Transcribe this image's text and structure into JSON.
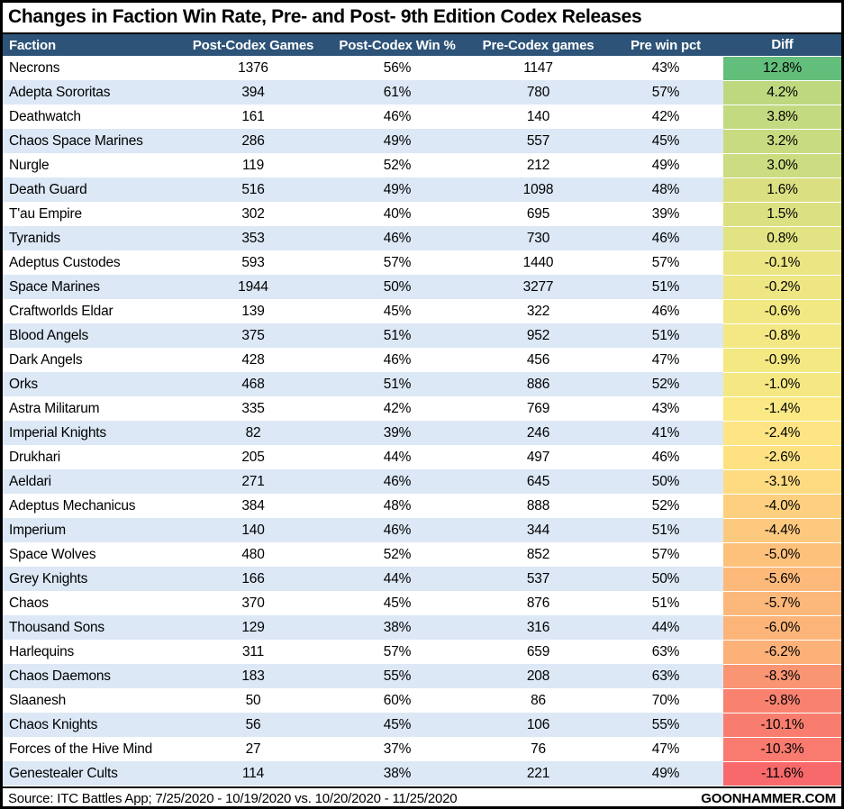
{
  "title": "Changes in Faction Win Rate, Pre- and Post- 9th Edition Codex Releases",
  "footer": {
    "source": "Source: ITC Battles App; 7/25/2020 - 10/19/2020 vs. 10/20/2020 - 11/25/2020",
    "site": "GOONHAMMER.COM"
  },
  "colors": {
    "header_bg": "#2D5378",
    "header_text": "#FFFFFF",
    "row_bg": "#FFFFFF",
    "row_alt_bg": "#DCE8F6",
    "diff_scale": {
      "min_value": -11.6,
      "min_color": "#F8696B",
      "mid_value": -1.9,
      "mid_color": "#FFEB84",
      "max_value": 12.8,
      "max_color": "#63BE7B"
    }
  },
  "chart_data": {
    "type": "table",
    "columns": [
      "Faction",
      "Post-Codex Games",
      "Post-Codex Win %",
      "Pre-Codex games",
      "Pre win pct",
      "Diff"
    ],
    "rows": [
      {
        "faction": "Necrons",
        "post_games": "1376",
        "post_win": "56%",
        "pre_games": "1147",
        "pre_win": "43%",
        "diff": "12.8%",
        "diff_value": 12.8
      },
      {
        "faction": "Adepta Sororitas",
        "post_games": "394",
        "post_win": "61%",
        "pre_games": "780",
        "pre_win": "57%",
        "diff": "4.2%",
        "diff_value": 4.2
      },
      {
        "faction": "Deathwatch",
        "post_games": "161",
        "post_win": "46%",
        "pre_games": "140",
        "pre_win": "42%",
        "diff": "3.8%",
        "diff_value": 3.8
      },
      {
        "faction": "Chaos Space Marines",
        "post_games": "286",
        "post_win": "49%",
        "pre_games": "557",
        "pre_win": "45%",
        "diff": "3.2%",
        "diff_value": 3.2
      },
      {
        "faction": "Nurgle",
        "post_games": "119",
        "post_win": "52%",
        "pre_games": "212",
        "pre_win": "49%",
        "diff": "3.0%",
        "diff_value": 3.0
      },
      {
        "faction": "Death Guard",
        "post_games": "516",
        "post_win": "49%",
        "pre_games": "1098",
        "pre_win": "48%",
        "diff": "1.6%",
        "diff_value": 1.6
      },
      {
        "faction": "T'au Empire",
        "post_games": "302",
        "post_win": "40%",
        "pre_games": "695",
        "pre_win": "39%",
        "diff": "1.5%",
        "diff_value": 1.5
      },
      {
        "faction": "Tyranids",
        "post_games": "353",
        "post_win": "46%",
        "pre_games": "730",
        "pre_win": "46%",
        "diff": "0.8%",
        "diff_value": 0.8
      },
      {
        "faction": "Adeptus Custodes",
        "post_games": "593",
        "post_win": "57%",
        "pre_games": "1440",
        "pre_win": "57%",
        "diff": "-0.1%",
        "diff_value": -0.1
      },
      {
        "faction": "Space Marines",
        "post_games": "1944",
        "post_win": "50%",
        "pre_games": "3277",
        "pre_win": "51%",
        "diff": "-0.2%",
        "diff_value": -0.2
      },
      {
        "faction": "Craftworlds Eldar",
        "post_games": "139",
        "post_win": "45%",
        "pre_games": "322",
        "pre_win": "46%",
        "diff": "-0.6%",
        "diff_value": -0.6
      },
      {
        "faction": "Blood Angels",
        "post_games": "375",
        "post_win": "51%",
        "pre_games": "952",
        "pre_win": "51%",
        "diff": "-0.8%",
        "diff_value": -0.8
      },
      {
        "faction": "Dark Angels",
        "post_games": "428",
        "post_win": "46%",
        "pre_games": "456",
        "pre_win": "47%",
        "diff": "-0.9%",
        "diff_value": -0.9
      },
      {
        "faction": "Orks",
        "post_games": "468",
        "post_win": "51%",
        "pre_games": "886",
        "pre_win": "52%",
        "diff": "-1.0%",
        "diff_value": -1.0
      },
      {
        "faction": "Astra Militarum",
        "post_games": "335",
        "post_win": "42%",
        "pre_games": "769",
        "pre_win": "43%",
        "diff": "-1.4%",
        "diff_value": -1.4
      },
      {
        "faction": "Imperial Knights",
        "post_games": "82",
        "post_win": "39%",
        "pre_games": "246",
        "pre_win": "41%",
        "diff": "-2.4%",
        "diff_value": -2.4
      },
      {
        "faction": "Drukhari",
        "post_games": "205",
        "post_win": "44%",
        "pre_games": "497",
        "pre_win": "46%",
        "diff": "-2.6%",
        "diff_value": -2.6
      },
      {
        "faction": "Aeldari",
        "post_games": "271",
        "post_win": "46%",
        "pre_games": "645",
        "pre_win": "50%",
        "diff": "-3.1%",
        "diff_value": -3.1
      },
      {
        "faction": "Adeptus Mechanicus",
        "post_games": "384",
        "post_win": "48%",
        "pre_games": "888",
        "pre_win": "52%",
        "diff": "-4.0%",
        "diff_value": -4.0
      },
      {
        "faction": "Imperium",
        "post_games": "140",
        "post_win": "46%",
        "pre_games": "344",
        "pre_win": "51%",
        "diff": "-4.4%",
        "diff_value": -4.4
      },
      {
        "faction": "Space Wolves",
        "post_games": "480",
        "post_win": "52%",
        "pre_games": "852",
        "pre_win": "57%",
        "diff": "-5.0%",
        "diff_value": -5.0
      },
      {
        "faction": "Grey Knights",
        "post_games": "166",
        "post_win": "44%",
        "pre_games": "537",
        "pre_win": "50%",
        "diff": "-5.6%",
        "diff_value": -5.6
      },
      {
        "faction": "Chaos",
        "post_games": "370",
        "post_win": "45%",
        "pre_games": "876",
        "pre_win": "51%",
        "diff": "-5.7%",
        "diff_value": -5.7
      },
      {
        "faction": "Thousand Sons",
        "post_games": "129",
        "post_win": "38%",
        "pre_games": "316",
        "pre_win": "44%",
        "diff": "-6.0%",
        "diff_value": -6.0
      },
      {
        "faction": "Harlequins",
        "post_games": "311",
        "post_win": "57%",
        "pre_games": "659",
        "pre_win": "63%",
        "diff": "-6.2%",
        "diff_value": -6.2
      },
      {
        "faction": "Chaos Daemons",
        "post_games": "183",
        "post_win": "55%",
        "pre_games": "208",
        "pre_win": "63%",
        "diff": "-8.3%",
        "diff_value": -8.3
      },
      {
        "faction": "Slaanesh",
        "post_games": "50",
        "post_win": "60%",
        "pre_games": "86",
        "pre_win": "70%",
        "diff": "-9.8%",
        "diff_value": -9.8
      },
      {
        "faction": "Chaos Knights",
        "post_games": "56",
        "post_win": "45%",
        "pre_games": "106",
        "pre_win": "55%",
        "diff": "-10.1%",
        "diff_value": -10.1
      },
      {
        "faction": "Forces of the Hive Mind",
        "post_games": "27",
        "post_win": "37%",
        "pre_games": "76",
        "pre_win": "47%",
        "diff": "-10.3%",
        "diff_value": -10.3
      },
      {
        "faction": "Genestealer Cults",
        "post_games": "114",
        "post_win": "38%",
        "pre_games": "221",
        "pre_win": "49%",
        "diff": "-11.6%",
        "diff_value": -11.6
      }
    ]
  }
}
